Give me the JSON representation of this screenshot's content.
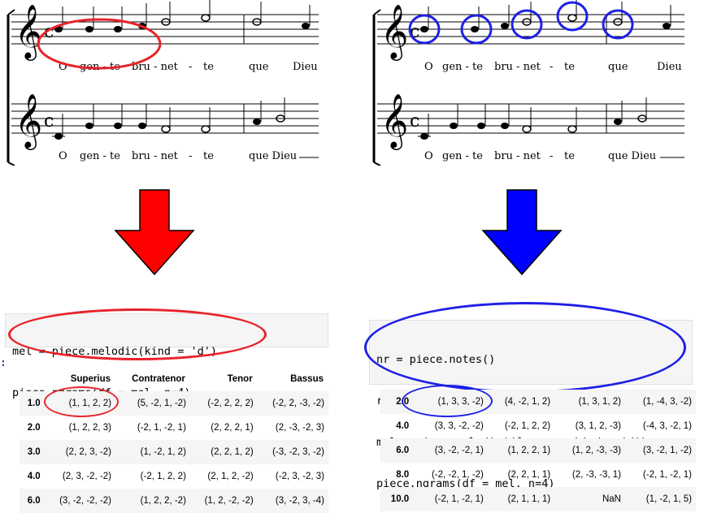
{
  "score_left": {
    "lyrics_top": [
      "O",
      "gen - te",
      "bru - net",
      "-",
      "te",
      "que",
      "Dieu"
    ],
    "lyrics_bottom": [
      "O",
      "gen - te",
      "bru - net",
      "-",
      "te",
      "que Dieu"
    ]
  },
  "score_right": {
    "lyrics_top": [
      "O",
      "gen - te",
      "bru - net",
      "-",
      "te",
      "que",
      "Dieu"
    ],
    "lyrics_bottom": [
      "O",
      "gen - te",
      "bru - net",
      "-",
      "te",
      "que Dieu"
    ]
  },
  "arrows": {
    "left_color": "#ff0000",
    "right_color": "#0000ff"
  },
  "highlight_colors": {
    "left": "#e8232a",
    "right": "#1e20e6"
  },
  "code_left": {
    "lines": [
      "mel = piece.melodic(kind = 'd')",
      "piece.ngrams(df = mel, n=4)"
    ],
    "prompt": ":"
  },
  "code_right": {
    "lines": [
      "nr = piece.notes()",
      "reg = piece.regularize(nr, unit = 2)",
      "mel = piece.melodic(df = reg, kind = 'd')",
      "piece.ngrams(df = mel, n=4)"
    ]
  },
  "table_left": {
    "columns": [
      "",
      "Superius",
      "Contratenor",
      "Tenor",
      "Bassus"
    ],
    "rows": [
      [
        "1.0",
        "(1, 1, 2, 2)",
        "(5, -2, 1, -2)",
        "(-2, 2, 2, 2)",
        "(-2, 2, -3, -2)"
      ],
      [
        "2.0",
        "(1, 2, 2, 3)",
        "(-2, 1, -2, 1)",
        "(2, 2, 2, 1)",
        "(2, -3, -2, 3)"
      ],
      [
        "3.0",
        "(2, 2, 3, -2)",
        "(1, -2, 1, 2)",
        "(2, 2, 1, 2)",
        "(-3, -2, 3, -2)"
      ],
      [
        "4.0",
        "(2, 3, -2, -2)",
        "(-2, 1, 2, 2)",
        "(2, 1, 2, -2)",
        "(-2, 3, -2, 3)"
      ],
      [
        "6.0",
        "(3, -2, -2, -2)",
        "(1, 2, 2, -2)",
        "(1, 2, -2, -2)",
        "(3, -2, 3, -4)"
      ]
    ]
  },
  "table_right": {
    "rows": [
      [
        "2.0",
        "(1, 3, 3, -2)",
        "(4, -2, 1, 2)",
        "(1, 3, 1, 2)",
        "(1, -4, 3, -2)"
      ],
      [
        "4.0",
        "(3, 3, -2, -2)",
        "(-2, 1, 2, 2)",
        "(3, 1, 2, -3)",
        "(-4, 3, -2, 1)"
      ],
      [
        "6.0",
        "(3, -2, -2, 1)",
        "(1, 2, 2, 1)",
        "(1, 2, -3, -3)",
        "(3, -2, 1, -2)"
      ],
      [
        "8.0",
        "(-2, -2, 1, -2)",
        "(2, 2, 1, 1)",
        "(2, -3, -3, 1)",
        "(-2, 1, -2, 1)"
      ],
      [
        "10.0",
        "(-2, 1, -2, 1)",
        "(2, 1, 1, 1)",
        "NaN",
        "(1, -2, 1, 5)"
      ]
    ]
  }
}
